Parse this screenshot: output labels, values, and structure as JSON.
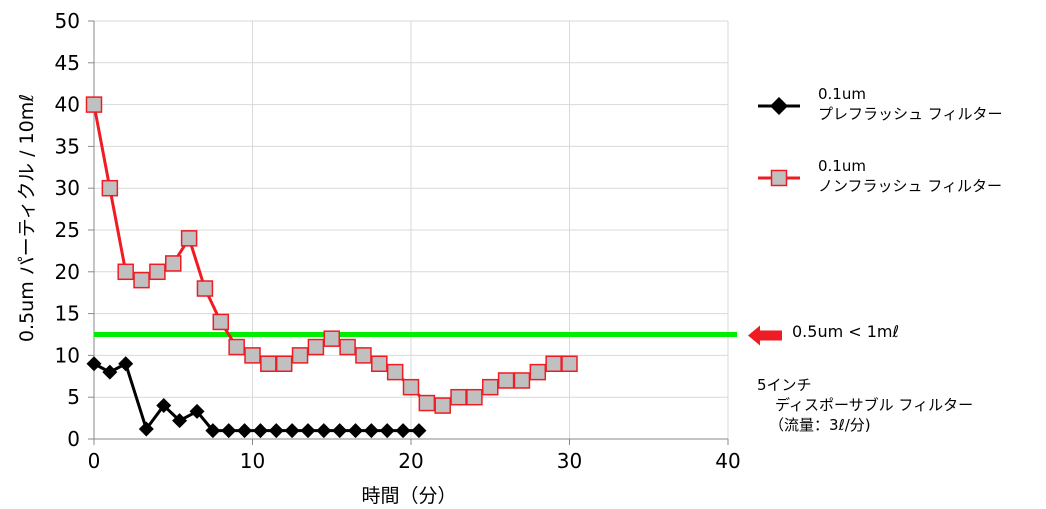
{
  "chart_data": {
    "type": "line",
    "title": "",
    "xlabel": "時間（分）",
    "ylabel": "0.5um パーティクル / 10mℓ",
    "xlim": [
      0,
      40
    ],
    "ylim": [
      0,
      50
    ],
    "x_ticks": [
      "0",
      "10",
      "20",
      "30",
      "40"
    ],
    "y_ticks": [
      "0",
      "5",
      "10",
      "15",
      "20",
      "25",
      "30",
      "35",
      "40",
      "45",
      "50"
    ],
    "grid": true,
    "legend_position": "right",
    "series": [
      {
        "name_line1": "0.1um",
        "name_line2": "プレフラッシュ フィルター",
        "color": "#000000",
        "marker": "diamond",
        "x": [
          0,
          1,
          2,
          3.3,
          4.4,
          5.4,
          6.5,
          7.5,
          8.5,
          9.5,
          10.5,
          11.5,
          12.5,
          13.5,
          14.5,
          15.5,
          16.5,
          17.5,
          18.5,
          19.5,
          20.5
        ],
        "y": [
          9,
          8,
          9,
          1.2,
          4,
          2.2,
          3.3,
          1,
          1,
          1,
          1,
          1,
          1,
          1,
          1,
          1,
          1,
          1,
          1,
          1,
          1
        ]
      },
      {
        "name_line1": "0.1um",
        "name_line2": "ノンフラッシュ フィルター",
        "color": "#ee1c24",
        "marker_fill": "#c0c0c0",
        "marker": "square",
        "x": [
          0,
          1,
          2,
          3,
          4,
          5,
          6,
          7,
          8,
          9,
          10,
          11,
          12,
          13,
          14,
          15,
          16,
          17,
          18,
          19,
          20,
          21,
          22,
          23,
          24,
          25,
          26,
          27,
          28,
          29,
          30
        ],
        "y": [
          40,
          30,
          20,
          19,
          20,
          21,
          24,
          18,
          14,
          11,
          10,
          9,
          9,
          10,
          11,
          12,
          11,
          10,
          9,
          8,
          6.2,
          4.3,
          4,
          5,
          5,
          6.2,
          7,
          7,
          8,
          9,
          9
        ]
      }
    ],
    "reference_line": {
      "y": 12.5,
      "color": "#00ee00",
      "label": "0.5um < 1mℓ",
      "arrow_color": "#ee1c24"
    },
    "annotation": [
      "5インチ",
      "ディスポーサブル フィルター",
      "（流量：3ℓ/分)"
    ]
  }
}
